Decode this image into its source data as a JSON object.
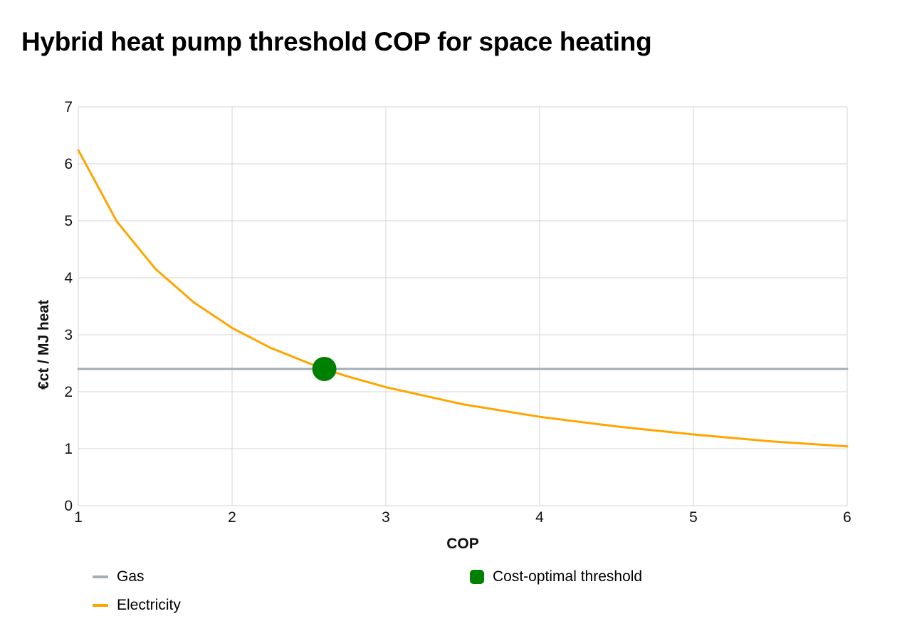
{
  "chart_data": {
    "type": "line",
    "title": "Hybrid heat pump threshold COP for space heating",
    "xlabel": "COP",
    "ylabel": "€ct / MJ heat",
    "xlim": [
      1,
      6
    ],
    "ylim": [
      0,
      7
    ],
    "x_ticks": [
      1,
      2,
      3,
      4,
      5,
      6
    ],
    "y_ticks": [
      0,
      1,
      2,
      3,
      4,
      5,
      6,
      7
    ],
    "grid": true,
    "legend_position": "bottom",
    "series": [
      {
        "name": "Gas",
        "color": "#a3adb8",
        "x": [
          1,
          6
        ],
        "y": [
          2.4,
          2.4
        ]
      },
      {
        "name": "Electricity",
        "color": "#ffa500",
        "x": [
          1.0,
          1.25,
          1.5,
          1.75,
          2.0,
          2.25,
          2.5,
          2.6,
          2.75,
          3.0,
          3.5,
          4.0,
          4.5,
          5.0,
          5.5,
          6.0
        ],
        "y": [
          6.24,
          4.99,
          4.16,
          3.57,
          3.12,
          2.77,
          2.5,
          2.4,
          2.27,
          2.08,
          1.78,
          1.56,
          1.39,
          1.25,
          1.13,
          1.04
        ]
      }
    ],
    "points": [
      {
        "name": "Cost-optimal threshold",
        "color": "#008000",
        "x": 2.6,
        "y": 2.4
      }
    ]
  }
}
